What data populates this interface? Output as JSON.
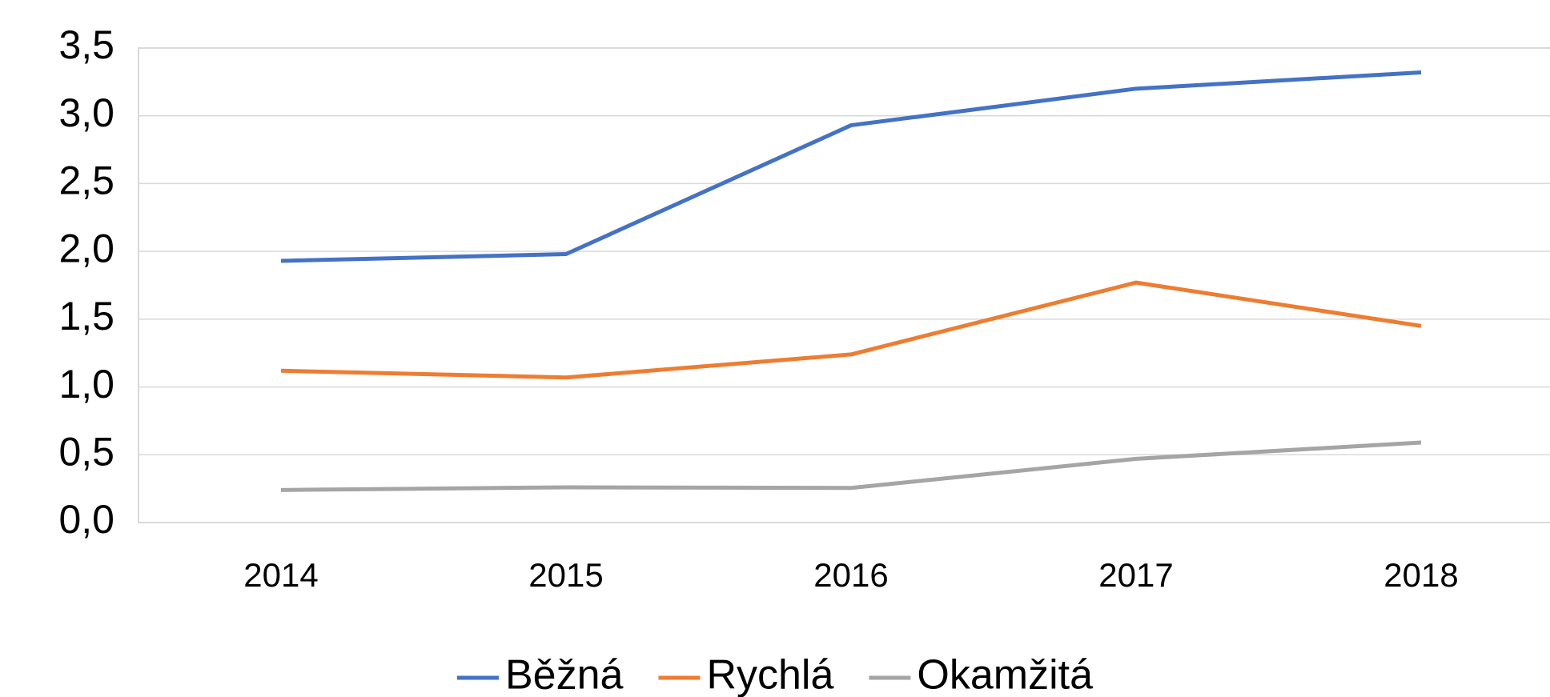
{
  "chart_data": {
    "type": "line",
    "categories": [
      "2014",
      "2015",
      "2016",
      "2017",
      "2018"
    ],
    "series": [
      {
        "name": "Běžná",
        "color": "#4472c4",
        "values": [
          1.93,
          1.98,
          2.93,
          3.2,
          3.32
        ]
      },
      {
        "name": "Rychlá",
        "color": "#ed7d31",
        "values": [
          1.12,
          1.07,
          1.24,
          1.77,
          1.45
        ]
      },
      {
        "name": "Okamžitá",
        "color": "#a5a5a5",
        "values": [
          0.24,
          0.26,
          0.255,
          0.47,
          0.59
        ]
      }
    ],
    "ylim": [
      0,
      3.5
    ],
    "yticks": [
      {
        "value": 0,
        "label": "0,0"
      },
      {
        "value": 0.5,
        "label": "0,5"
      },
      {
        "value": 1,
        "label": "1,0"
      },
      {
        "value": 1.5,
        "label": "1,5"
      },
      {
        "value": 2,
        "label": "2,0"
      },
      {
        "value": 2.5,
        "label": "2,5"
      },
      {
        "value": 3,
        "label": "3,0"
      },
      {
        "value": 3.5,
        "label": "3,5"
      }
    ],
    "grid": true,
    "legend": "bottom"
  }
}
